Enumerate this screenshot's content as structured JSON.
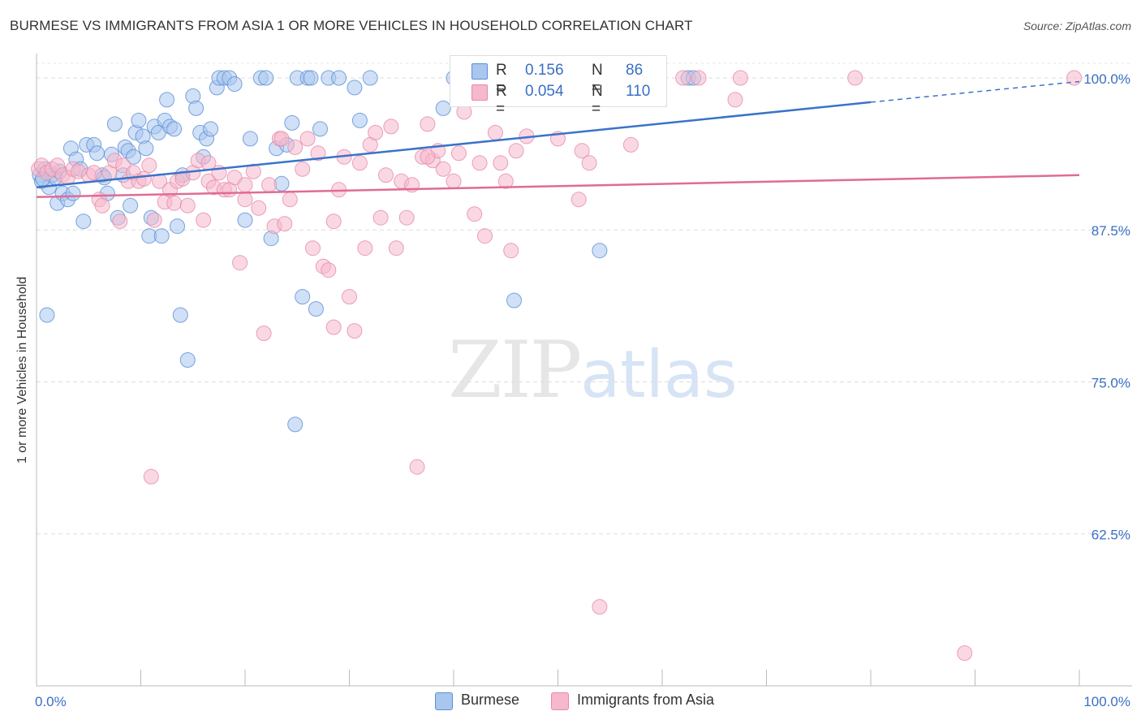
{
  "header": {
    "title": "BURMESE VS IMMIGRANTS FROM ASIA 1 OR MORE VEHICLES IN HOUSEHOLD CORRELATION CHART",
    "source": "Source: ZipAtlas.com"
  },
  "watermark": {
    "zip": "ZIP",
    "atlas": "atlas"
  },
  "legend_stats": [
    {
      "r_label": "R =",
      "r_value": "0.156",
      "n_label": "N =",
      "n_value": "86",
      "color": "#a9c6ee"
    },
    {
      "r_label": "R =",
      "r_value": "0.054",
      "n_label": "N =",
      "n_value": "110",
      "color": "#f6b8cc"
    }
  ],
  "bottom_legend": [
    {
      "label": "Burmese",
      "color": "#a9c6ee"
    },
    {
      "label": "Immigrants from Asia",
      "color": "#f6b8cc"
    }
  ],
  "chart_data": {
    "type": "scatter",
    "title": "BURMESE VS IMMIGRANTS FROM ASIA 1 OR MORE VEHICLES IN HOUSEHOLD CORRELATION CHART",
    "xlabel": "",
    "ylabel": "1 or more Vehicles in Household",
    "xlim": [
      0,
      100
    ],
    "ylim": [
      50,
      102
    ],
    "x_tick_labels": [
      "0.0%",
      "100.0%"
    ],
    "y_ticks": [
      100,
      87.5,
      75,
      62.5
    ],
    "y_tick_labels": [
      "100.0%",
      "87.5%",
      "75.0%",
      "62.5%"
    ],
    "grid": true,
    "legend_position": "top-center",
    "series": [
      {
        "name": "Burmese",
        "color": "#a9c6ee",
        "stroke": "#5b8fd6",
        "trend": {
          "x0": 0,
          "y0": 91.0,
          "x1": 80,
          "y1": 98.0,
          "x2": 100,
          "y2": 99.7,
          "color": "#3a73c9"
        },
        "points": [
          [
            0.3,
            92.0
          ],
          [
            0.5,
            91.5
          ],
          [
            0.8,
            92.5
          ],
          [
            1.0,
            80.5
          ],
          [
            1.2,
            91.0
          ],
          [
            1.5,
            92.0
          ],
          [
            2.0,
            89.7
          ],
          [
            2.5,
            90.5
          ],
          [
            3.0,
            90.0
          ],
          [
            3.3,
            94.2
          ],
          [
            3.8,
            93.3
          ],
          [
            4.2,
            92.5
          ],
          [
            4.5,
            88.2
          ],
          [
            4.8,
            94.5
          ],
          [
            5.5,
            94.5
          ],
          [
            5.8,
            93.8
          ],
          [
            6.3,
            92.0
          ],
          [
            6.5,
            91.8
          ],
          [
            6.8,
            90.5
          ],
          [
            7.2,
            93.7
          ],
          [
            7.5,
            96.2
          ],
          [
            7.8,
            88.5
          ],
          [
            8.3,
            92.0
          ],
          [
            8.5,
            94.3
          ],
          [
            8.8,
            94.0
          ],
          [
            9.0,
            89.5
          ],
          [
            9.3,
            93.5
          ],
          [
            9.5,
            95.5
          ],
          [
            9.8,
            96.5
          ],
          [
            10.2,
            95.2
          ],
          [
            10.5,
            94.2
          ],
          [
            10.8,
            87.0
          ],
          [
            11.0,
            88.5
          ],
          [
            11.3,
            96.0
          ],
          [
            11.7,
            95.5
          ],
          [
            12.0,
            87.0
          ],
          [
            12.3,
            96.5
          ],
          [
            12.5,
            98.2
          ],
          [
            12.8,
            96.0
          ],
          [
            13.2,
            95.8
          ],
          [
            13.5,
            87.8
          ],
          [
            13.8,
            80.5
          ],
          [
            14.0,
            92.0
          ],
          [
            14.5,
            76.8
          ],
          [
            15.0,
            98.5
          ],
          [
            15.3,
            97.5
          ],
          [
            15.7,
            95.5
          ],
          [
            16.0,
            93.5
          ],
          [
            16.3,
            95.0
          ],
          [
            16.7,
            95.8
          ],
          [
            17.3,
            99.2
          ],
          [
            17.5,
            100
          ],
          [
            18.0,
            100
          ],
          [
            18.5,
            100
          ],
          [
            19.0,
            99.5
          ],
          [
            20.0,
            88.3
          ],
          [
            20.5,
            95.0
          ],
          [
            21.5,
            100
          ],
          [
            22.0,
            100
          ],
          [
            22.5,
            86.8
          ],
          [
            23.0,
            94.2
          ],
          [
            23.5,
            91.3
          ],
          [
            24.0,
            94.5
          ],
          [
            24.5,
            96.3
          ],
          [
            25.0,
            100
          ],
          [
            25.5,
            82.0
          ],
          [
            26.0,
            100
          ],
          [
            26.3,
            100
          ],
          [
            26.8,
            81.0
          ],
          [
            27.2,
            95.8
          ],
          [
            28.0,
            100
          ],
          [
            29.0,
            100
          ],
          [
            30.5,
            99.2
          ],
          [
            31.0,
            96.5
          ],
          [
            32.0,
            100
          ],
          [
            24.8,
            71.5
          ],
          [
            39.0,
            97.5
          ],
          [
            40.0,
            100
          ],
          [
            45.8,
            81.7
          ],
          [
            54.0,
            85.8
          ],
          [
            62.5,
            100
          ],
          [
            63.0,
            100
          ],
          [
            1.8,
            91.8
          ],
          [
            2.2,
            92.3
          ],
          [
            0.6,
            91.7
          ],
          [
            3.5,
            90.5
          ]
        ]
      },
      {
        "name": "Immigrants from Asia",
        "color": "#f6b8cc",
        "stroke": "#e68aa8",
        "trend": {
          "x0": 0,
          "y0": 90.2,
          "x1": 100,
          "y1": 92.0,
          "color": "#e06b95"
        },
        "points": [
          [
            0.2,
            92.5
          ],
          [
            0.5,
            92.8
          ],
          [
            1.0,
            92.2
          ],
          [
            1.5,
            92.5
          ],
          [
            2.0,
            92.8
          ],
          [
            2.5,
            92.0
          ],
          [
            3.0,
            91.8
          ],
          [
            3.5,
            92.5
          ],
          [
            4.0,
            92.3
          ],
          [
            5.0,
            92.0
          ],
          [
            5.5,
            92.2
          ],
          [
            6.0,
            90.0
          ],
          [
            6.3,
            89.5
          ],
          [
            7.0,
            92.2
          ],
          [
            7.5,
            93.2
          ],
          [
            8.0,
            88.2
          ],
          [
            8.3,
            92.8
          ],
          [
            8.8,
            91.5
          ],
          [
            9.3,
            92.2
          ],
          [
            9.8,
            91.5
          ],
          [
            10.3,
            91.7
          ],
          [
            10.8,
            92.8
          ],
          [
            11.0,
            67.2
          ],
          [
            11.3,
            88.3
          ],
          [
            11.8,
            91.5
          ],
          [
            12.3,
            89.8
          ],
          [
            12.8,
            90.8
          ],
          [
            13.2,
            89.7
          ],
          [
            13.5,
            91.5
          ],
          [
            14.0,
            91.7
          ],
          [
            14.5,
            89.5
          ],
          [
            15.0,
            92.2
          ],
          [
            15.5,
            93.2
          ],
          [
            16.0,
            88.3
          ],
          [
            16.5,
            91.5
          ],
          [
            17.0,
            91.0
          ],
          [
            17.5,
            92.2
          ],
          [
            18.0,
            90.8
          ],
          [
            18.5,
            90.8
          ],
          [
            19.0,
            91.8
          ],
          [
            19.5,
            84.8
          ],
          [
            20.0,
            91.2
          ],
          [
            20.8,
            92.3
          ],
          [
            21.3,
            89.3
          ],
          [
            21.8,
            79.0
          ],
          [
            22.3,
            91.2
          ],
          [
            22.8,
            87.8
          ],
          [
            23.3,
            95.0
          ],
          [
            23.8,
            88.0
          ],
          [
            24.3,
            90.0
          ],
          [
            24.8,
            94.3
          ],
          [
            25.5,
            92.5
          ],
          [
            26.0,
            95.0
          ],
          [
            26.5,
            86.0
          ],
          [
            27.0,
            93.8
          ],
          [
            27.5,
            84.5
          ],
          [
            28.0,
            84.2
          ],
          [
            28.5,
            79.5
          ],
          [
            29.0,
            90.8
          ],
          [
            29.5,
            93.5
          ],
          [
            30.0,
            82.0
          ],
          [
            30.5,
            79.2
          ],
          [
            31.0,
            93.0
          ],
          [
            31.5,
            86.0
          ],
          [
            32.0,
            94.5
          ],
          [
            32.5,
            95.5
          ],
          [
            33.0,
            88.5
          ],
          [
            33.5,
            92.0
          ],
          [
            34.0,
            96.0
          ],
          [
            34.5,
            86.0
          ],
          [
            35.0,
            91.5
          ],
          [
            35.5,
            88.5
          ],
          [
            36.0,
            91.2
          ],
          [
            36.5,
            68.0
          ],
          [
            37.0,
            93.5
          ],
          [
            37.5,
            96.2
          ],
          [
            38.0,
            93.2
          ],
          [
            38.5,
            94.0
          ],
          [
            39.0,
            92.5
          ],
          [
            40.0,
            91.5
          ],
          [
            40.5,
            93.8
          ],
          [
            41.0,
            97.2
          ],
          [
            42.0,
            88.8
          ],
          [
            42.5,
            93.0
          ],
          [
            43.0,
            87.0
          ],
          [
            44.0,
            95.5
          ],
          [
            44.5,
            93.0
          ],
          [
            45.0,
            91.5
          ],
          [
            45.5,
            85.8
          ],
          [
            46.0,
            94.0
          ],
          [
            47.0,
            95.2
          ],
          [
            49.0,
            100
          ],
          [
            50.0,
            95.0
          ],
          [
            52.0,
            90.0
          ],
          [
            52.3,
            94.0
          ],
          [
            54.0,
            56.5
          ],
          [
            57.0,
            94.5
          ],
          [
            62.0,
            100
          ],
          [
            63.5,
            100
          ],
          [
            67.0,
            98.2
          ],
          [
            67.5,
            100
          ],
          [
            78.5,
            100
          ],
          [
            89.0,
            52.7
          ],
          [
            99.5,
            100
          ],
          [
            16.5,
            93.0
          ],
          [
            23.5,
            95.0
          ],
          [
            37.5,
            93.5
          ],
          [
            53.0,
            93.0
          ],
          [
            20.0,
            90.0
          ],
          [
            28.5,
            88.2
          ]
        ]
      }
    ]
  }
}
